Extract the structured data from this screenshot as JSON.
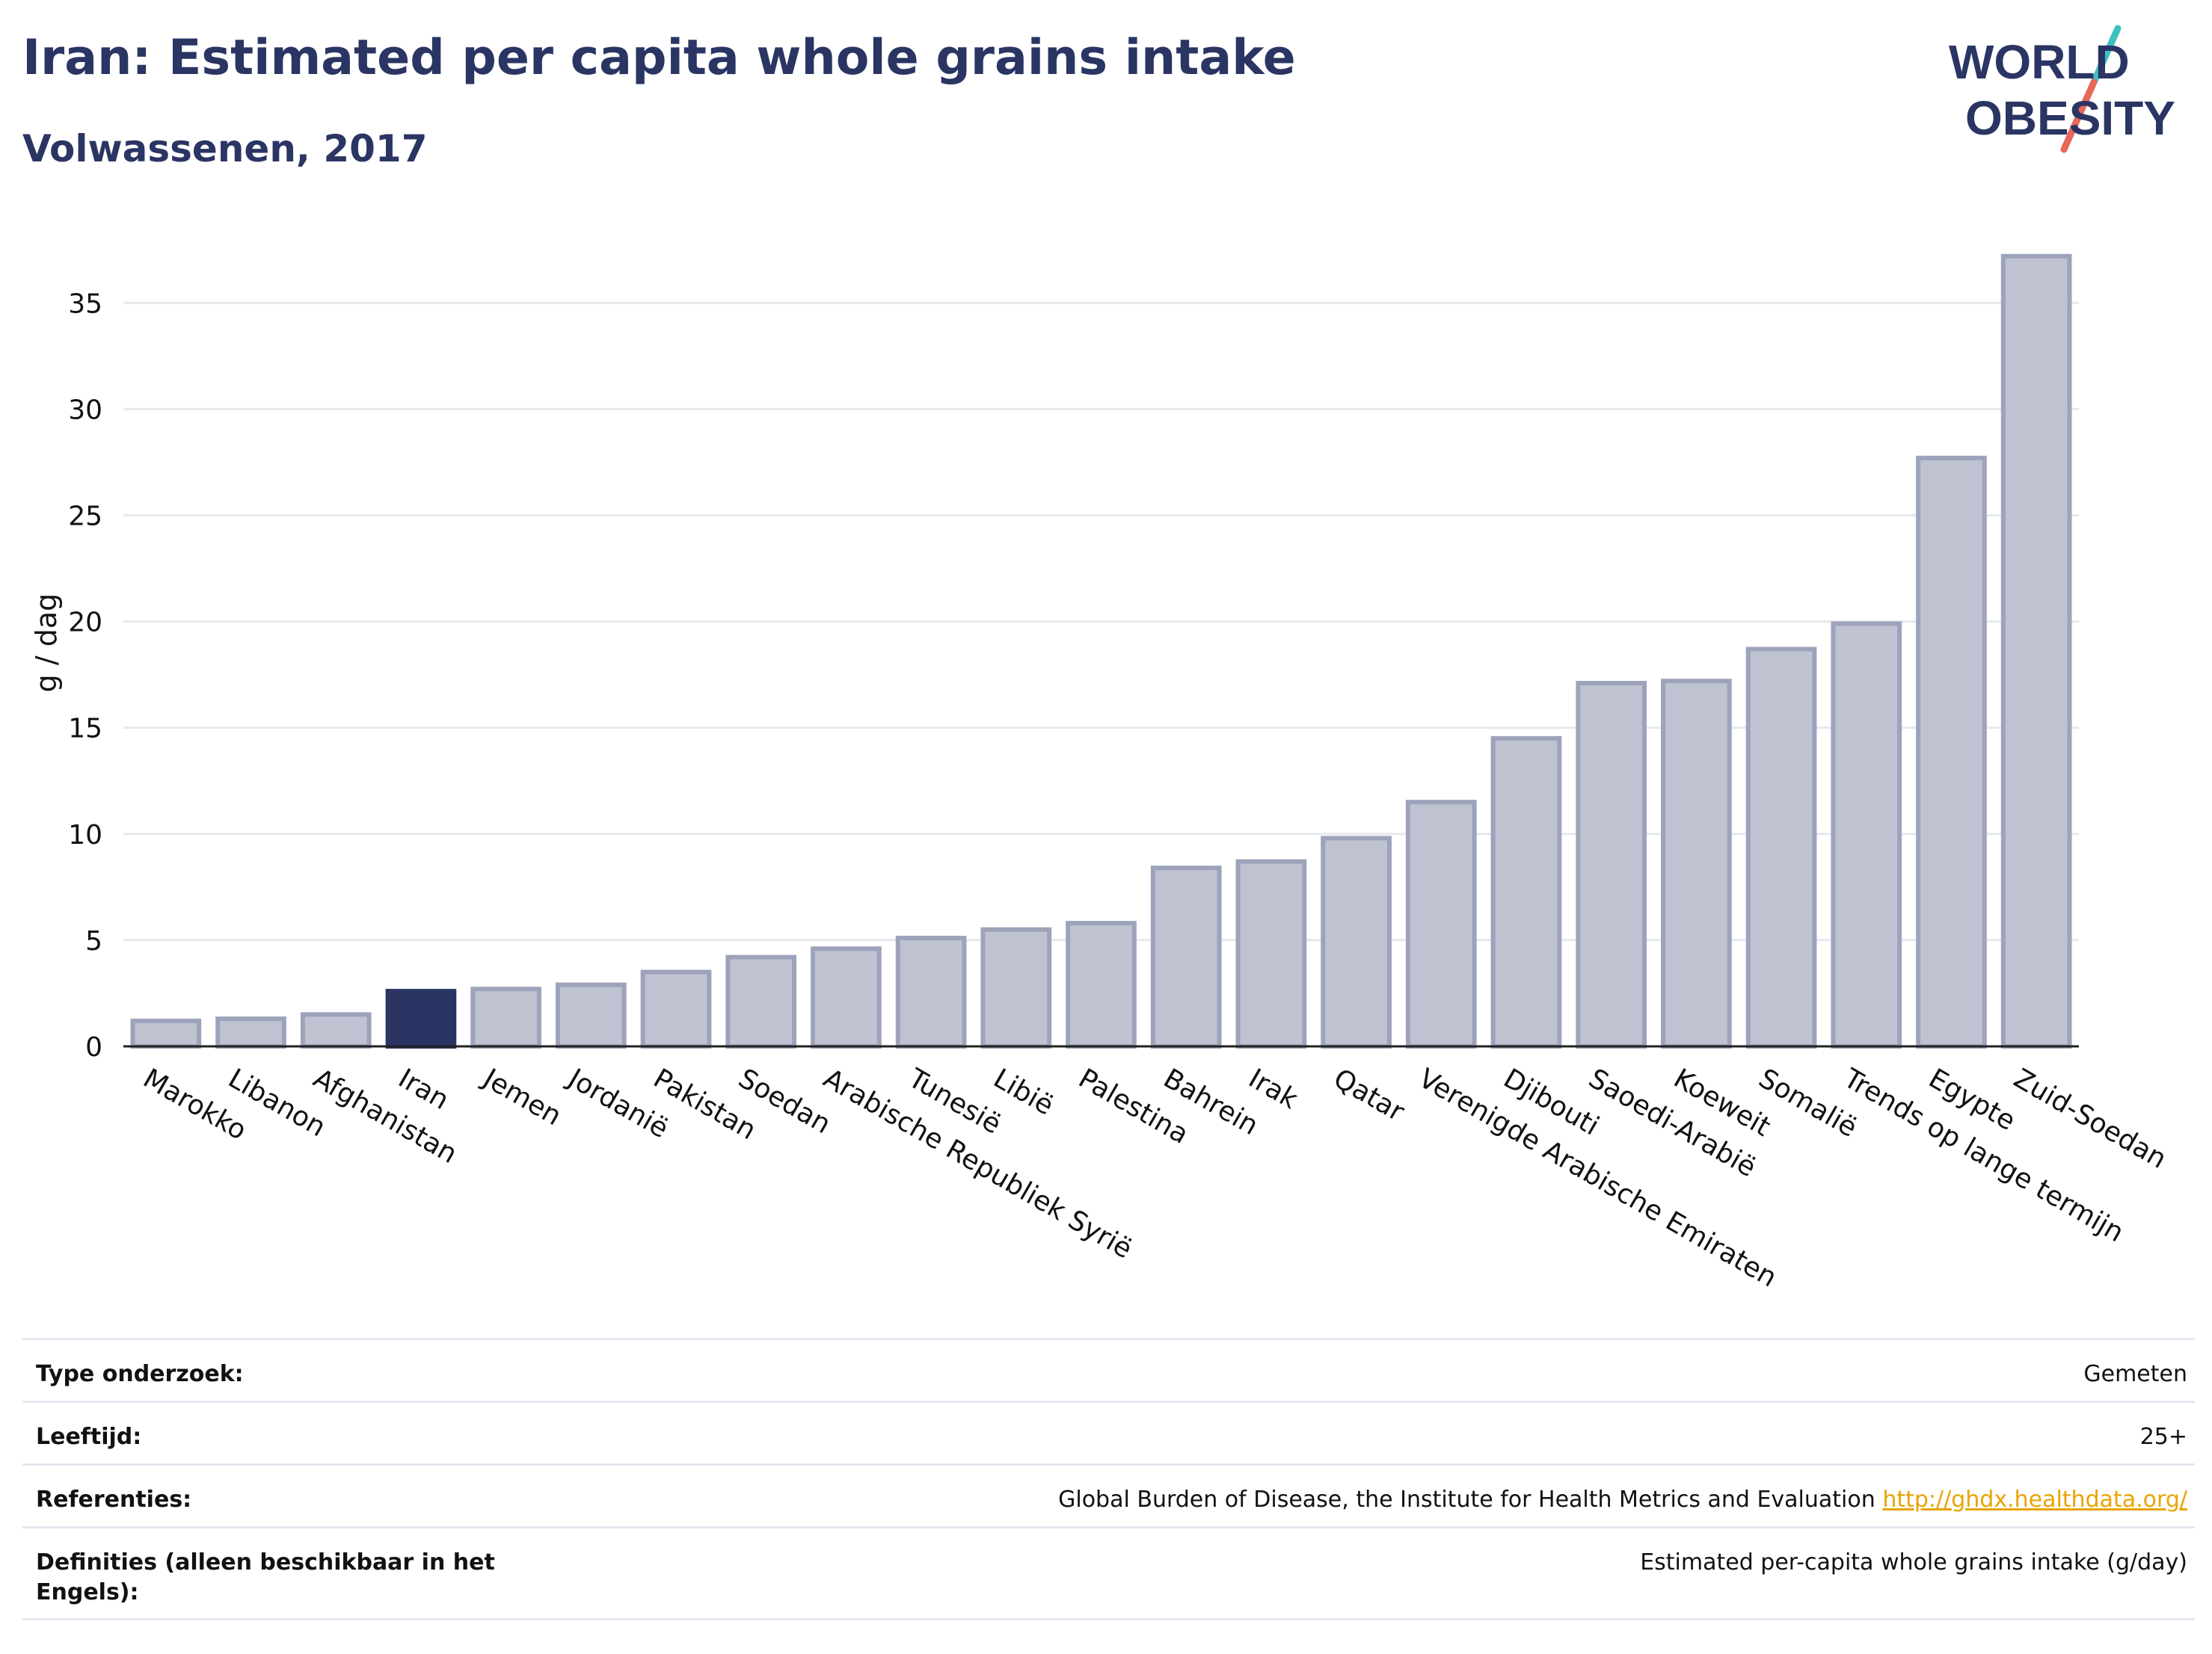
{
  "header": {
    "title": "Iran: Estimated per capita whole grains intake",
    "subtitle": "Volwassenen, 2017"
  },
  "logo": {
    "line1": "WORLD",
    "line2": "OBESITY"
  },
  "chart_data": {
    "type": "bar",
    "ylabel": "g / dag",
    "xlabel": "",
    "ylim": [
      0,
      38
    ],
    "yticks": [
      0,
      5,
      10,
      15,
      20,
      25,
      30,
      35
    ],
    "grid": true,
    "highlight": "Iran",
    "colors": {
      "bar": "#bfc2d0",
      "bar_edge": "#9da3bb",
      "highlight": "#2a3563"
    },
    "categories": [
      "Marokko",
      "Libanon",
      "Afghanistan",
      "Iran",
      "Jemen",
      "Jordanië",
      "Pakistan",
      "Soedan",
      "Arabische Republiek Syrië",
      "Tunesië",
      "Libië",
      "Palestina",
      "Bahrein",
      "Irak",
      "Qatar",
      "Verenigde Arabische Emiraten",
      "Djibouti",
      "Saoedi-Arabië",
      "Koeweit",
      "Somalië",
      "Trends op lange termijn",
      "Egypte",
      "Zuid-Soedan"
    ],
    "values": [
      1.2,
      1.3,
      1.5,
      2.6,
      2.7,
      2.9,
      3.5,
      4.2,
      4.6,
      5.1,
      5.5,
      5.8,
      8.4,
      8.7,
      9.8,
      11.5,
      14.5,
      17.1,
      17.2,
      18.7,
      19.9,
      27.7,
      37.2
    ]
  },
  "meta": {
    "rows": [
      {
        "label": "Type onderzoek:",
        "value": "Gemeten"
      },
      {
        "label": "Leeftijd:",
        "value": "25+"
      },
      {
        "label": "Referenties:",
        "value": "Global Burden of Disease, the Institute for Health Metrics and Evaluation",
        "link": "http://ghdx.healthdata.org/"
      },
      {
        "label": "Definities (alleen beschikbaar in het Engels):",
        "value": "Estimated per-capita whole grains intake (g/day)"
      }
    ]
  }
}
